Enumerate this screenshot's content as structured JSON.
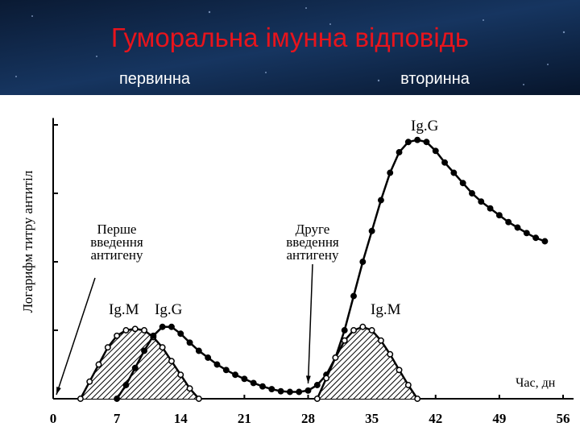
{
  "chart_data": {
    "type": "line",
    "title": "Гуморальна імунна відповідь",
    "subtitles": [
      "первинна",
      "вторинна"
    ],
    "y_label": "Логарифм титру антитіл",
    "x_label": "Час, дн",
    "xlim": [
      0,
      56
    ],
    "xticks": [
      0,
      7,
      14,
      21,
      28,
      35,
      42,
      49,
      56
    ],
    "ylim": [
      0,
      4.1
    ],
    "yticks": [
      1,
      2,
      3,
      4
    ],
    "annotations": [
      {
        "lines": [
          "Перше",
          "введення",
          "антигену"
        ],
        "arrow_x": 0
      },
      {
        "lines": [
          "Друге",
          "введення",
          "антигену"
        ],
        "arrow_x": 28
      }
    ],
    "series": [
      {
        "name": "Ig.M",
        "color": "#000000",
        "marker": "open",
        "fill": "hatch",
        "x": [
          3,
          4,
          5,
          6,
          7,
          8,
          9,
          10,
          11,
          12,
          13,
          14,
          15,
          16
        ],
        "values": [
          0,
          0.25,
          0.5,
          0.75,
          0.92,
          1.0,
          1.02,
          1.0,
          0.9,
          0.75,
          0.55,
          0.35,
          0.15,
          0
        ]
      },
      {
        "name": "Ig.G",
        "color": "#000000",
        "marker": "filled",
        "fill": "none",
        "x": [
          7,
          8,
          9,
          10,
          11,
          12,
          13,
          14,
          15,
          16,
          17,
          18,
          19,
          20,
          21,
          22,
          23,
          24,
          25,
          26,
          27,
          28,
          29,
          30,
          31,
          32,
          33,
          34,
          35,
          36,
          37,
          38,
          39,
          40,
          41,
          42,
          43,
          44,
          45,
          46,
          47,
          48,
          49,
          50,
          51,
          52,
          53,
          54
        ],
        "values": [
          0,
          0.2,
          0.45,
          0.7,
          0.92,
          1.05,
          1.05,
          0.95,
          0.82,
          0.7,
          0.6,
          0.5,
          0.42,
          0.35,
          0.29,
          0.23,
          0.18,
          0.14,
          0.11,
          0.1,
          0.1,
          0.12,
          0.2,
          0.35,
          0.6,
          1.0,
          1.5,
          2.0,
          2.45,
          2.9,
          3.3,
          3.6,
          3.75,
          3.78,
          3.75,
          3.62,
          3.45,
          3.3,
          3.15,
          3.0,
          2.88,
          2.78,
          2.68,
          2.58,
          2.5,
          2.42,
          2.35,
          2.3
        ]
      },
      {
        "name": "Ig.M",
        "color": "#000000",
        "marker": "open",
        "fill": "hatch",
        "x": [
          29,
          30,
          31,
          32,
          33,
          34,
          35,
          36,
          37,
          38,
          39,
          40
        ],
        "values": [
          0,
          0.3,
          0.6,
          0.85,
          1.0,
          1.05,
          1.0,
          0.85,
          0.65,
          0.42,
          0.2,
          0
        ]
      }
    ]
  }
}
